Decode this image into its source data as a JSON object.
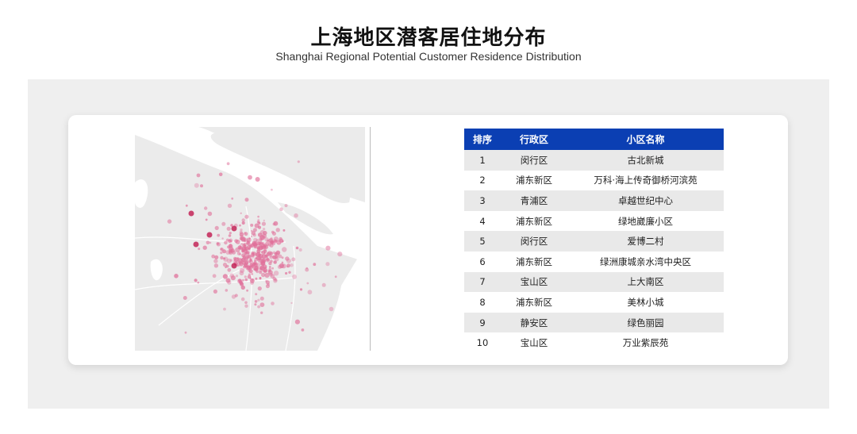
{
  "header": {
    "title": "上海地区潜客居住地分布",
    "subtitle": "Shanghai Regional Potential Customer Residence Distribution"
  },
  "map": {
    "description_icon": "shanghai-heat-map",
    "dot_color": "#e0709a"
  },
  "table": {
    "header_color": "#0b3fb3",
    "columns": [
      "排序",
      "行政区",
      "小区名称"
    ],
    "rows": [
      {
        "rank": "1",
        "district": "闵行区",
        "community": "古北新城"
      },
      {
        "rank": "2",
        "district": "浦东新区",
        "community": "万科·海上传奇御桥河滨苑"
      },
      {
        "rank": "3",
        "district": "青浦区",
        "community": "卓越世纪中心"
      },
      {
        "rank": "4",
        "district": "浦东新区",
        "community": "绿地崴廉小区"
      },
      {
        "rank": "5",
        "district": "闵行区",
        "community": "爱博二村"
      },
      {
        "rank": "6",
        "district": "浦东新区",
        "community": "绿洲康城亲水湾中央区"
      },
      {
        "rank": "7",
        "district": "宝山区",
        "community": "上大南区"
      },
      {
        "rank": "8",
        "district": "浦东新区",
        "community": "美林小城"
      },
      {
        "rank": "9",
        "district": "静安区",
        "community": "绿色丽园"
      },
      {
        "rank": "10",
        "district": "宝山区",
        "community": "万业紫辰苑"
      }
    ]
  }
}
